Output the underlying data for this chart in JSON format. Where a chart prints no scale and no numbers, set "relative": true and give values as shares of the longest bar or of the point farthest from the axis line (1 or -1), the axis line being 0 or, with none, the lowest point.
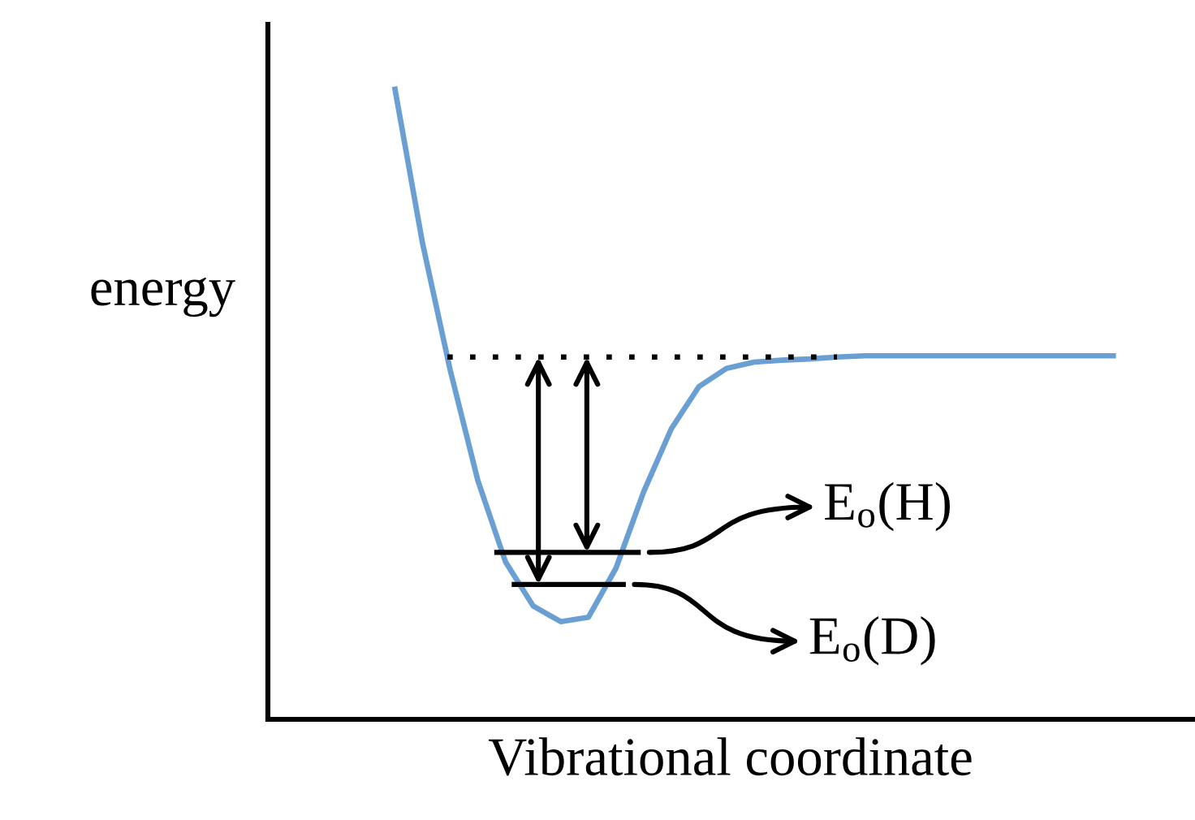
{
  "chart_data": {
    "type": "line",
    "relative": true,
    "xlabel": "Vibrational coordinate",
    "ylabel": "energy",
    "categories": [
      null,
      null,
      null,
      null,
      null,
      null,
      null,
      null,
      null,
      null,
      null,
      null,
      null,
      null,
      null,
      null,
      null,
      null,
      null,
      null,
      null,
      null,
      null,
      null,
      null,
      null,
      null
    ],
    "series": [
      {
        "color": "#6a9fd4",
        "values": [
          1.0,
          0.755,
          0.554,
          0.379,
          0.25,
          0.18,
          0.155,
          0.162,
          0.24,
          0.361,
          0.461,
          0.528,
          0.557,
          0.567,
          0.57,
          0.572,
          0.575,
          0.577,
          0.577,
          0.577,
          0.577,
          0.577,
          0.577,
          0.577,
          0.577,
          0.577,
          0.577
        ]
      }
    ],
    "ref_lines": [
      {
        "axis": "y",
        "value": 0.575,
        "color": "#000000",
        "line_style": "dotted"
      },
      {
        "axis": "y",
        "value": 0.265,
        "label": "E$_{o}$(H)",
        "color": "#000000",
        "line_style": "solid"
      },
      {
        "axis": "y",
        "value": 0.214,
        "label": "E$_{o}$(D)",
        "color": "#000000",
        "line_style": "solid"
      }
    ],
    "marker": "none",
    "line_style": "solid"
  }
}
